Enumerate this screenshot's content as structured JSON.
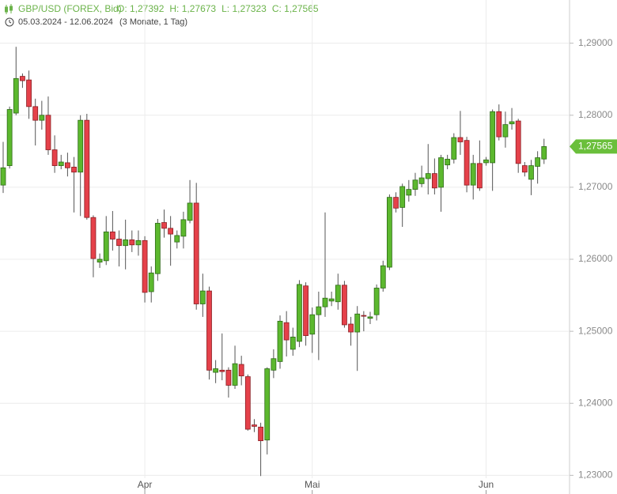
{
  "chart_data": {
    "type": "candlestick",
    "title": "GBP/USD (FOREX, Bid)",
    "quote": [
      "O: 1,27392",
      "H: 1,27673",
      "L: 1,27323",
      "C: 1,27565"
    ],
    "subtitle": "05.03.2024 - 12.06.2024",
    "period": "(3 Monate, 1 Tag)",
    "categories": [
      null,
      null,
      null,
      null,
      null,
      null,
      null,
      null,
      null,
      null,
      null,
      null,
      null,
      null,
      null,
      null,
      null,
      null,
      null,
      null,
      null,
      null,
      "Apr",
      null,
      null,
      null,
      null,
      null,
      null,
      null,
      null,
      null,
      null,
      null,
      null,
      null,
      null,
      null,
      null,
      null,
      null,
      null,
      null,
      null,
      null,
      null,
      null,
      null,
      "Mai",
      null,
      null,
      null,
      null,
      null,
      null,
      null,
      null,
      null,
      null,
      null,
      null,
      null,
      null,
      null,
      null,
      null,
      null,
      null,
      null,
      null,
      null,
      null,
      null,
      null,
      null,
      "Jun",
      null,
      null,
      null,
      null,
      null,
      null,
      null,
      null,
      null
    ],
    "open": [
      1.2703,
      1.273,
      1.2803,
      1.2854,
      1.2849,
      1.2812,
      1.2793,
      1.28,
      1.2752,
      1.273,
      1.2734,
      1.2728,
      1.2721,
      1.2793,
      1.2658,
      1.2596,
      1.2598,
      1.2638,
      1.2628,
      1.2619,
      1.2627,
      1.262,
      1.2626,
      1.2555,
      1.258,
      1.2651,
      1.2643,
      1.2624,
      1.2632,
      1.2654,
      1.2678,
      1.2538,
      1.2556,
      1.2443,
      1.2446,
      1.2446,
      1.2425,
      1.2454,
      1.2437,
      1.237,
      1.2367,
      1.2349,
      1.2446,
      1.2458,
      1.2512,
      1.2475,
      1.2486,
      1.2563,
      1.2496,
      1.2523,
      1.2534,
      1.2542,
      1.2541,
      1.2564,
      1.251,
      1.2499,
      1.2522,
      1.2518,
      1.2523,
      1.256,
      1.2589,
      1.2686,
      1.2672,
      1.2689,
      1.2697,
      1.2705,
      1.2712,
      1.2719,
      1.27,
      1.2731,
      1.2739,
      1.2769,
      1.2765,
      1.2703,
      1.2733,
      1.2734,
      1.2734,
      1.2805,
      1.277,
      1.2788,
      1.2792,
      1.273,
      1.2711,
      1.2729,
      1.27392
    ],
    "high": [
      1.2763,
      1.2812,
      1.2895,
      1.2858,
      1.2862,
      1.2823,
      1.282,
      1.2826,
      1.2772,
      1.2745,
      1.2748,
      1.2742,
      1.28,
      1.2802,
      1.2661,
      1.2608,
      1.266,
      1.2667,
      1.264,
      1.2655,
      1.264,
      1.264,
      1.2632,
      1.259,
      1.2656,
      1.2669,
      1.266,
      1.264,
      1.2666,
      1.271,
      1.2706,
      1.258,
      1.2562,
      1.246,
      1.2497,
      1.245,
      1.248,
      1.2466,
      1.244,
      1.2378,
      1.2373,
      1.245,
      1.2475,
      1.2522,
      1.2528,
      1.2505,
      1.2571,
      1.2568,
      1.2533,
      1.2555,
      1.2665,
      1.2555,
      1.258,
      1.257,
      1.252,
      1.2535,
      1.2528,
      1.2527,
      1.2565,
      1.2598,
      1.269,
      1.2693,
      1.2705,
      1.271,
      1.272,
      1.273,
      1.276,
      1.274,
      1.2745,
      1.2745,
      1.2775,
      1.2806,
      1.277,
      1.2745,
      1.2765,
      1.2742,
      1.2808,
      1.2815,
      1.2805,
      1.281,
      1.2795,
      1.2735,
      1.2738,
      1.275,
      1.27673
    ],
    "low": [
      1.2692,
      1.2726,
      1.28,
      1.2838,
      1.2795,
      1.2758,
      1.278,
      1.2745,
      1.272,
      1.2725,
      1.2715,
      1.2665,
      1.266,
      1.2655,
      1.2575,
      1.2588,
      1.2592,
      1.2612,
      1.259,
      1.2586,
      1.261,
      1.2605,
      1.254,
      1.254,
      1.257,
      1.263,
      1.2591,
      1.2615,
      1.2615,
      1.265,
      1.253,
      1.252,
      1.2433,
      1.2428,
      1.2432,
      1.2408,
      1.242,
      1.2425,
      1.2362,
      1.236,
      1.2299,
      1.2329,
      1.2435,
      1.2448,
      1.2465,
      1.2466,
      1.2478,
      1.248,
      1.247,
      1.246,
      1.252,
      1.2535,
      1.253,
      1.2505,
      1.248,
      1.2445,
      1.25,
      1.251,
      1.2515,
      1.2555,
      1.2585,
      1.2665,
      1.2645,
      1.268,
      1.2688,
      1.27,
      1.269,
      1.269,
      1.2666,
      1.2725,
      1.2733,
      1.2745,
      1.2693,
      1.2683,
      1.2695,
      1.273,
      1.2695,
      1.2765,
      1.2755,
      1.278,
      1.272,
      1.2715,
      1.2689,
      1.2705,
      1.27323
    ],
    "close": [
      1.2727,
      1.2808,
      1.2851,
      1.2848,
      1.2812,
      1.2793,
      1.28,
      1.2752,
      1.273,
      1.2735,
      1.2727,
      1.2721,
      1.2793,
      1.2658,
      1.2601,
      1.26,
      1.2638,
      1.2628,
      1.2619,
      1.2627,
      1.262,
      1.2626,
      1.2554,
      1.2581,
      1.265,
      1.2643,
      1.2635,
      1.2633,
      1.2655,
      1.2678,
      1.2538,
      1.2556,
      1.2446,
      1.2448,
      1.2444,
      1.2425,
      1.2455,
      1.2438,
      1.2364,
      1.2368,
      1.2348,
      1.2448,
      1.2462,
      1.2514,
      1.2488,
      1.2492,
      1.2565,
      1.2494,
      1.2523,
      1.2534,
      1.2546,
      1.2545,
      1.2564,
      1.2509,
      1.2499,
      1.2524,
      1.2521,
      1.252,
      1.256,
      1.2591,
      1.2686,
      1.2671,
      1.2701,
      1.2697,
      1.271,
      1.2713,
      1.2719,
      1.2699,
      1.2741,
      1.2739,
      1.2769,
      1.2763,
      1.2703,
      1.2733,
      1.2699,
      1.2738,
      1.2805,
      1.277,
      1.2787,
      1.2791,
      1.2733,
      1.2721,
      1.273,
      1.2741,
      1.27565
    ],
    "up_color": "#5cb82e",
    "down_color": "#e5414a",
    "last_label": "1,27565",
    "ylim": [
      1.2296,
      1.296
    ],
    "yticks": [
      {
        "value": 1.23,
        "label": "1,23000"
      },
      {
        "value": 1.24,
        "label": "1,24000"
      },
      {
        "value": 1.25,
        "label": "1,25000"
      },
      {
        "value": 1.26,
        "label": "1,26000"
      },
      {
        "value": 1.27,
        "label": "1,27000"
      },
      {
        "value": 1.28,
        "label": "1,28000"
      },
      {
        "value": 1.29,
        "label": "1,29000"
      }
    ],
    "grid": true
  }
}
